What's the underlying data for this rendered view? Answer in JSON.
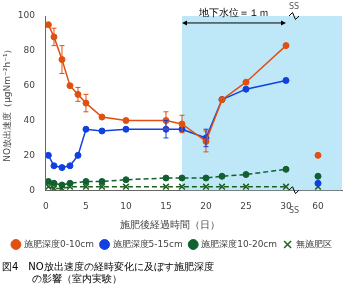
{
  "chart_data": [
    {
      "type": "line",
      "xlabel": "施肥後経過時間（日）",
      "ylabel": "NO放出速度（μgNm⁻²h⁻¹）",
      "xlim": [
        0,
        31
      ],
      "xticks": [
        0,
        5,
        10,
        15,
        20,
        25,
        30
      ],
      "ylim": [
        0,
        100
      ],
      "yticks": [
        0,
        20,
        40,
        60,
        80,
        100
      ],
      "grid": false,
      "legend": "bottom",
      "series": [
        {
          "name": "施肥深度0-10cm",
          "color": "#e05010",
          "marker": "circle",
          "line_style": "solid",
          "x": [
            0.3,
            1,
            2,
            3,
            4,
            5,
            7,
            10,
            15,
            17,
            20,
            22,
            25,
            30
          ],
          "values": [
            95,
            88,
            75,
            60,
            55,
            50,
            42,
            40,
            40,
            38,
            28,
            52,
            62,
            83
          ],
          "yerr": [
            0,
            5,
            8,
            0,
            4,
            5,
            0,
            0,
            5,
            5,
            6,
            0,
            0,
            0
          ]
        },
        {
          "name": "施肥深度5-15cm",
          "color": "#1040e0",
          "marker": "circle",
          "line_style": "solid",
          "x": [
            0.3,
            1,
            2,
            3,
            4,
            5,
            7,
            10,
            15,
            17,
            20,
            22,
            25,
            30
          ],
          "values": [
            20,
            14,
            13,
            14,
            20,
            35,
            34,
            35,
            35,
            35,
            30,
            52,
            58,
            63
          ],
          "yerr": [
            0,
            0,
            0,
            0,
            0,
            0,
            0,
            0,
            5,
            0,
            5,
            0,
            0,
            0
          ]
        },
        {
          "name": "施肥深度10-20cm",
          "color": "#106030",
          "marker": "circle",
          "line_style": "dashed",
          "x": [
            0.3,
            1,
            2,
            3,
            5,
            7,
            10,
            15,
            17,
            20,
            22,
            25,
            30
          ],
          "values": [
            5,
            4,
            3,
            4,
            5,
            5,
            6,
            7,
            7,
            7,
            8,
            9,
            12
          ],
          "yerr": [
            0,
            0,
            0,
            0,
            0,
            0,
            0,
            0,
            0,
            0,
            0,
            0,
            0
          ]
        },
        {
          "name": "無施肥区",
          "color": "#206020",
          "marker": "cross",
          "line_style": "dashed",
          "x": [
            0.3,
            1,
            2,
            3,
            5,
            7,
            10,
            15,
            17,
            20,
            22,
            25,
            30
          ],
          "values": [
            2,
            1,
            1,
            2,
            2,
            2,
            2,
            2,
            2,
            2,
            2,
            2,
            2
          ],
          "yerr": [
            0,
            0,
            0,
            0,
            0,
            0,
            0,
            0,
            0,
            0,
            0,
            0,
            0
          ]
        }
      ],
      "shaded": {
        "x": [
          17,
          31
        ],
        "color": "#bee8f8"
      },
      "annotations": [
        {
          "text": "地下水位＝１ｍ",
          "x": 23.5,
          "y": 98,
          "arrow_x": [
            17,
            30
          ],
          "arrow_y": 96
        },
        {
          "text": "SS",
          "position": "top"
        },
        {
          "text": "SS",
          "position": "bottom"
        }
      ],
      "caption": [
        "図4　NO放出速度の経時変化に及ぼす施肥深度",
        "　　　の影響（室内実験）"
      ]
    },
    {
      "type": "line",
      "xlim": [
        57,
        63
      ],
      "xticks": [
        60
      ],
      "ylim": [
        0,
        100
      ],
      "tick_labels": "x",
      "grid": false,
      "shaded": {
        "x": [
          55,
          65
        ],
        "color": "#bee8f8"
      },
      "series": [
        {
          "name": "施肥深度0-10cm",
          "color": "#e05010",
          "marker": "circle",
          "x": [
            60
          ],
          "values": [
            20
          ]
        },
        {
          "name": "施肥深度5-15cm",
          "color": "#1040e0",
          "marker": "circle",
          "x": [
            60
          ],
          "values": [
            4
          ]
        },
        {
          "name": "施肥深度10-20cm",
          "color": "#106030",
          "marker": "circle",
          "x": [
            60
          ],
          "values": [
            8
          ]
        },
        {
          "name": "無施肥区",
          "color": "#206020",
          "marker": "cross",
          "x": [
            60
          ],
          "values": [
            2
          ]
        }
      ]
    }
  ]
}
